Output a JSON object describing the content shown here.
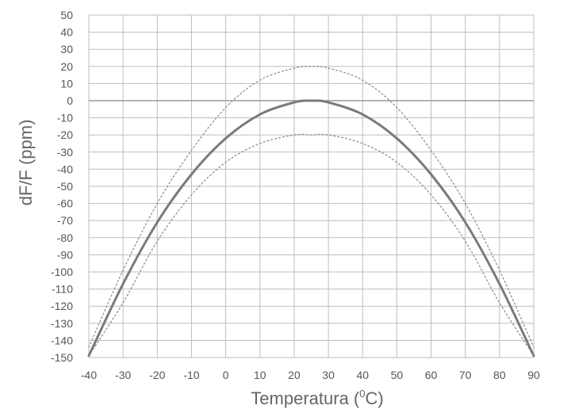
{
  "chart_data": {
    "type": "line",
    "xlabel": "Temperatura (",
    "xlabel_sup": "0",
    "xlabel_suffix": "C)",
    "ylabel": "dF/F (ppm)",
    "xlim": [
      -40,
      90
    ],
    "ylim": [
      -150,
      50
    ],
    "x_ticks": [
      -40,
      -30,
      -20,
      -10,
      0,
      10,
      20,
      30,
      40,
      50,
      60,
      70,
      80,
      90
    ],
    "y_ticks": [
      50,
      40,
      30,
      20,
      10,
      0,
      -10,
      -20,
      -30,
      -40,
      -50,
      -60,
      -70,
      -80,
      -90,
      -100,
      -110,
      -120,
      -130,
      -140,
      -150
    ],
    "grid": true,
    "colors": {
      "grid": "#bdbdbd",
      "curve": "#7a7a7a",
      "bound": "#8a8a8a",
      "zero_line": "#9a9a9a"
    },
    "series": [
      {
        "style": "solid",
        "x": [
          -40,
          -30,
          -20,
          -10,
          0,
          10,
          20,
          25,
          30,
          40,
          50,
          60,
          70,
          80,
          90
        ],
        "y": [
          -149,
          -107,
          -71,
          -43,
          -22,
          -8,
          -1,
          0,
          -1,
          -8,
          -22,
          -43,
          -71,
          -107,
          -149
        ]
      },
      {
        "style": "dotted",
        "x": [
          -40,
          -30,
          -20,
          -10,
          0,
          10,
          20,
          25,
          30,
          40,
          50,
          60,
          70,
          80,
          90
        ],
        "y": [
          -144,
          -99,
          -60,
          -29,
          -4,
          12,
          19,
          20,
          19,
          12,
          -4,
          -29,
          -60,
          -99,
          -144
        ]
      },
      {
        "style": "dotted",
        "x": [
          -40,
          -30,
          -20,
          -10,
          0,
          10,
          20,
          25,
          30,
          40,
          50,
          60,
          70,
          80,
          90
        ],
        "y": [
          -149,
          -118,
          -82,
          -55,
          -36,
          -25,
          -20,
          -20,
          -20,
          -25,
          -36,
          -55,
          -82,
          -118,
          -149
        ]
      }
    ]
  }
}
